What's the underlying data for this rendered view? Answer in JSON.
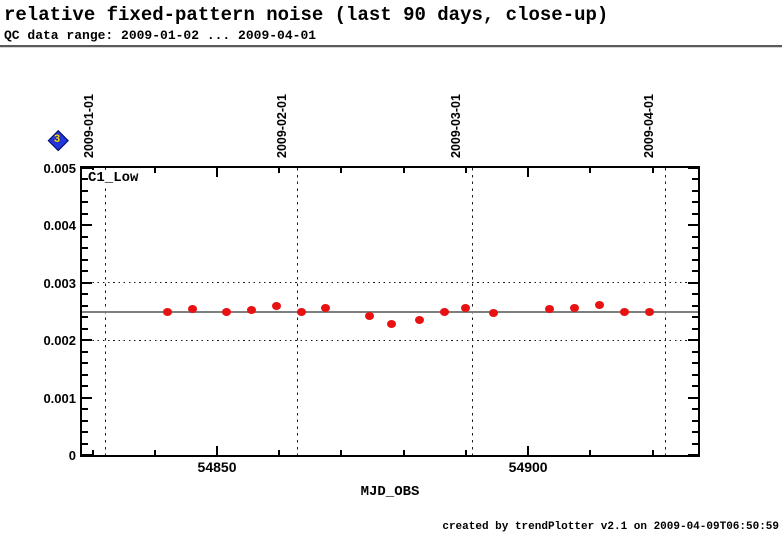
{
  "header": {
    "title": "relative fixed-pattern noise (last 90 days, close-up)",
    "subtitle": "QC data range: 2009-01-02 ... 2009-04-01"
  },
  "history_icon": {
    "label": "3",
    "fill_color": "#2336d9",
    "number_color": "#ffe000"
  },
  "footer": {
    "credit": "created by trendPlotter v2.1 on 2009-04-09T06:50:59"
  },
  "chart_data": {
    "type": "scatter",
    "series_label": "C1_Low",
    "xlabel": "MJD_OBS",
    "ylabel": "",
    "xlim": [
      54828.3,
      54927.3
    ],
    "ylim": [
      0,
      0.005
    ],
    "xticks_major": [
      {
        "mjd": 54850,
        "label": "54850"
      },
      {
        "mjd": 54900,
        "label": "54900"
      }
    ],
    "xticks_minor": [
      54830,
      54840,
      54860,
      54870,
      54880,
      54890,
      54910,
      54920
    ],
    "yticks_major": [
      {
        "v": 0,
        "label": "0"
      },
      {
        "v": 0.001,
        "label": "0.001"
      },
      {
        "v": 0.002,
        "label": "0.002"
      },
      {
        "v": 0.003,
        "label": "0.003"
      },
      {
        "v": 0.004,
        "label": "0.004"
      },
      {
        "v": 0.005,
        "label": "0.005"
      }
    ],
    "ytick_minor_step": 0.0002,
    "date_lines": [
      {
        "mjd": 54832,
        "label": "2009-01-01"
      },
      {
        "mjd": 54863,
        "label": "2009-02-01"
      },
      {
        "mjd": 54891,
        "label": "2009-03-01"
      },
      {
        "mjd": 54922,
        "label": "2009-04-01"
      }
    ],
    "reference_line": 0.0025,
    "threshold_lines": [
      0.002,
      0.003
    ],
    "point_color": "#e81212",
    "reference_color": "#7f7f7f",
    "grid": "vertical dashed lines at month starts, dotted lines at thresholds",
    "legend_position": "none",
    "points": {
      "mjd": [
        54842,
        54846,
        54851.5,
        54855.5,
        54859.5,
        54863.5,
        54867.5,
        54874.5,
        54878,
        54882.5,
        54886.5,
        54890,
        54894.5,
        54903.5,
        54907.5,
        54911.5,
        54915.5,
        54919.5
      ],
      "value": [
        0.0025,
        0.00255,
        0.0025,
        0.00253,
        0.0026,
        0.0025,
        0.00256,
        0.00243,
        0.00228,
        0.00235,
        0.00249,
        0.00256,
        0.00248,
        0.00254,
        0.00256,
        0.00262,
        0.0025,
        0.00249
      ]
    }
  }
}
